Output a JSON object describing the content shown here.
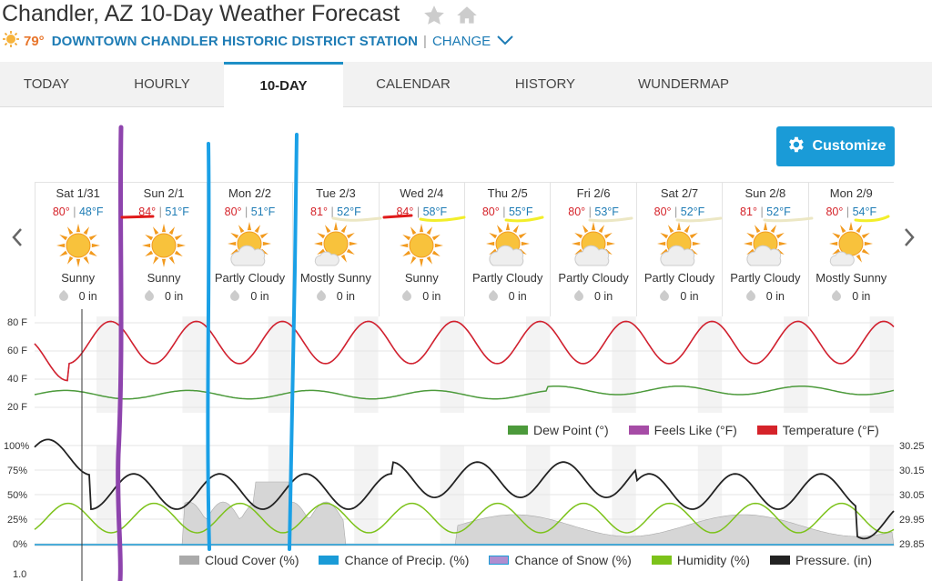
{
  "page": {
    "title": "Chandler, AZ 10-Day Weather Forecast"
  },
  "station": {
    "current_temp": "79°",
    "name": "DOWNTOWN CHANDLER HISTORIC DISTRICT STATION",
    "separator": "|",
    "change_label": "CHANGE"
  },
  "tabs": [
    {
      "label": "TODAY"
    },
    {
      "label": "HOURLY"
    },
    {
      "label": "10-DAY"
    },
    {
      "label": "CALENDAR"
    },
    {
      "label": "HISTORY"
    },
    {
      "label": "WUNDERMAP"
    }
  ],
  "active_tab": "10-DAY",
  "customize": {
    "label": "Customize"
  },
  "days": [
    {
      "date": "Sat 1/31",
      "hi": "80°",
      "lo": "48°F",
      "cond": "Sunny",
      "precip": "0 in",
      "icon": "sunny-icon"
    },
    {
      "date": "Sun 2/1",
      "hi": "84°",
      "lo": "51°F",
      "cond": "Sunny",
      "precip": "0 in",
      "icon": "sunny-icon"
    },
    {
      "date": "Mon 2/2",
      "hi": "80°",
      "lo": "51°F",
      "cond": "Partly Cloudy",
      "precip": "0 in",
      "icon": "partly-cloudy-icon"
    },
    {
      "date": "Tue 2/3",
      "hi": "81°",
      "lo": "52°F",
      "cond": "Mostly Sunny",
      "precip": "0 in",
      "icon": "mostly-sunny-icon"
    },
    {
      "date": "Wed 2/4",
      "hi": "84°",
      "lo": "58°F",
      "cond": "Sunny",
      "precip": "0 in",
      "icon": "sunny-icon"
    },
    {
      "date": "Thu 2/5",
      "hi": "80°",
      "lo": "55°F",
      "cond": "Partly Cloudy",
      "precip": "0 in",
      "icon": "partly-cloudy-icon"
    },
    {
      "date": "Fri 2/6",
      "hi": "80°",
      "lo": "53°F",
      "cond": "Partly Cloudy",
      "precip": "0 in",
      "icon": "partly-cloudy-icon"
    },
    {
      "date": "Sat 2/7",
      "hi": "80°",
      "lo": "52°F",
      "cond": "Partly Cloudy",
      "precip": "0 in",
      "icon": "partly-cloudy-icon"
    },
    {
      "date": "Sun 2/8",
      "hi": "81°",
      "lo": "52°F",
      "cond": "Partly Cloudy",
      "precip": "0 in",
      "icon": "partly-cloudy-icon"
    },
    {
      "date": "Mon 2/9",
      "hi": "80°",
      "lo": "54°F",
      "cond": "Mostly Sunny",
      "precip": "0 in",
      "icon": "mostly-sunny-icon"
    }
  ],
  "temp_chart": {
    "y_ticks": [
      "80 F",
      "60 F",
      "40 F",
      "20 F"
    ],
    "legend": [
      {
        "label": "Dew Point (°)",
        "color": "#4c9a3b"
      },
      {
        "label": "Feels Like (°F)",
        "color": "#a64ca6"
      },
      {
        "label": "Temperature (°F)",
        "color": "#d5232a"
      }
    ]
  },
  "cond_chart": {
    "y_ticks_left": [
      "100%",
      "75%",
      "50%",
      "25%",
      "0%"
    ],
    "y_ticks_right": [
      "30.25",
      "30.15",
      "30.05",
      "29.95",
      "29.85"
    ],
    "legend": [
      {
        "label": "Cloud Cover (%)",
        "color": "#aaaaaa"
      },
      {
        "label": "Chance of Precip. (%)",
        "color": "#1a9bd7"
      },
      {
        "label": "Chance of Snow (%)",
        "color": "#b08ed0"
      },
      {
        "label": "Humidity (%)",
        "color": "#7cc21a"
      },
      {
        "label": "Pressure. (in)",
        "color": "#222222"
      }
    ],
    "bottom_tick": "1.0"
  },
  "annotations": {
    "colors": [
      "#8e44ad",
      "#1aa0e6",
      "#e01b1b",
      "#f2ee2a",
      "#ece7c4"
    ]
  }
}
